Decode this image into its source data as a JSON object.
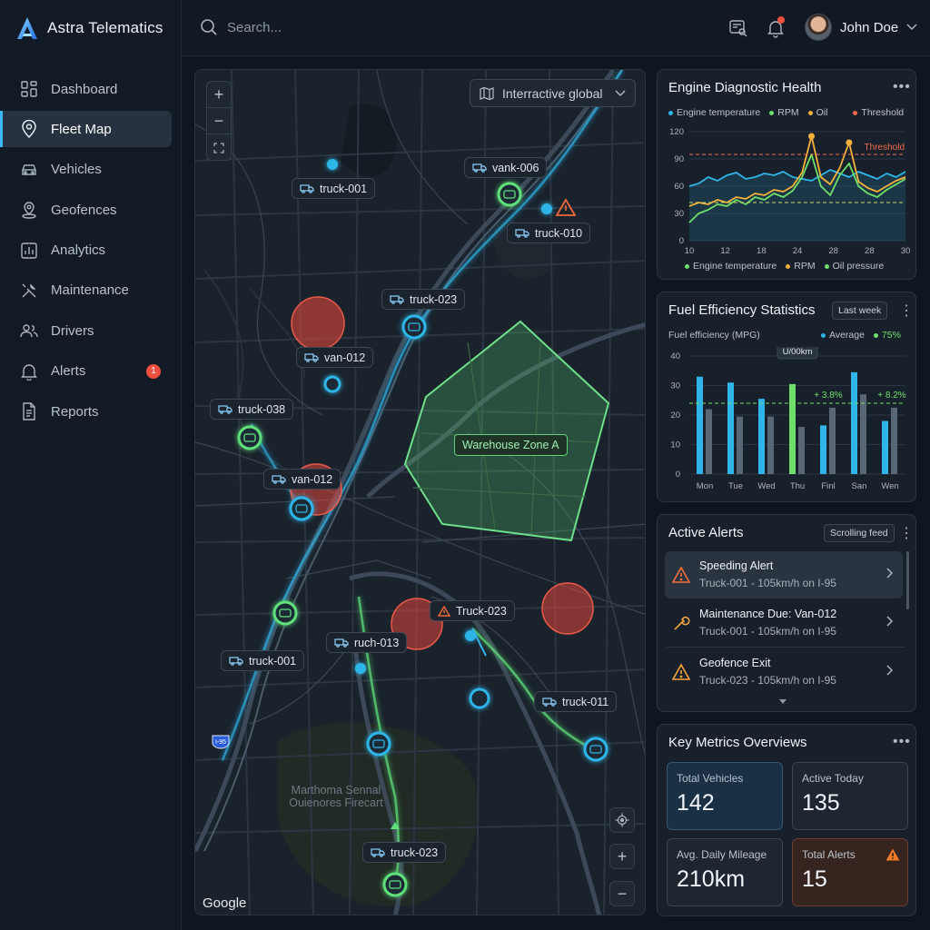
{
  "app": {
    "name": "Astra Telematics"
  },
  "search": {
    "placeholder": "Search..."
  },
  "user": {
    "name": "John Doe"
  },
  "sidebar": {
    "items": [
      {
        "label": "Dashboard",
        "icon": "grid-icon"
      },
      {
        "label": "Fleet Map",
        "icon": "map-pin-icon",
        "active": true
      },
      {
        "label": "Vehicles",
        "icon": "car-icon"
      },
      {
        "label": "Geofences",
        "icon": "geofence-pin-icon"
      },
      {
        "label": "Analytics",
        "icon": "bar-chart-icon"
      },
      {
        "label": "Maintenance",
        "icon": "wrench-icon"
      },
      {
        "label": "Drivers",
        "icon": "users-icon"
      },
      {
        "label": "Alerts",
        "icon": "bell-icon",
        "badge": "1"
      },
      {
        "label": "Reports",
        "icon": "document-icon"
      }
    ]
  },
  "map": {
    "layer_select": "Interractive global",
    "zone_label": "Warehouse Zone A",
    "place_label": "Marthoma Sennal Ouienores Firecart",
    "attribution": "Google",
    "shield": "I-95",
    "vehicles": [
      {
        "label": "truck-001"
      },
      {
        "label": "vank-006"
      },
      {
        "label": "truck-010"
      },
      {
        "label": "truck-023"
      },
      {
        "label": "van-012"
      },
      {
        "label": "truck-038"
      },
      {
        "label": "van-012"
      },
      {
        "label": "Truck-023"
      },
      {
        "label": "ruch-013"
      },
      {
        "label": "truck-001"
      },
      {
        "label": "truck-011"
      },
      {
        "label": "truck-023"
      }
    ]
  },
  "engine_card": {
    "title": "Engine Diagnostic Health",
    "legend_top": [
      "Engine temperature",
      "RPM",
      "Oil",
      "Threshold"
    ],
    "legend_bottom": [
      "Engine temperature",
      "RPM",
      "Oil pressure"
    ],
    "threshold_label": "Threshold",
    "colors": {
      "temp": "#2fb5e8",
      "rpm": "#6ee06a",
      "oil": "#f4b23c",
      "threshold": "#f06a4a"
    }
  },
  "fuel_card": {
    "title": "Fuel Efficiency Statistics",
    "range_button": "Last week",
    "ylabel": "Fuel efficiency (MPG)",
    "legend": [
      "Average",
      "75%"
    ],
    "tooltip": "U/00km",
    "annotations": [
      "+ 3.8%",
      "+ 8.2%"
    ]
  },
  "alerts_card": {
    "title": "Active Alerts",
    "feed_button": "Scrolling feed",
    "items": [
      {
        "title": "Speeding Alert",
        "sub": "Truck-001 - 105km/h on I-95",
        "icon": "warning-icon"
      },
      {
        "title": "Maintenance Due: Van-012",
        "sub": "Truck-001 - 105km/h on I-95",
        "icon": "wrench-icon"
      },
      {
        "title": "Geofence Exit",
        "sub": "Truck-023 - 105km/h on I-95",
        "icon": "warning-icon"
      }
    ]
  },
  "metrics_card": {
    "title": "Key Metrics Overviews",
    "items": [
      {
        "label": "Total Vehicles",
        "value": "142"
      },
      {
        "label": "Active Today",
        "value": "135"
      },
      {
        "label": "Avg. Daily Mileage",
        "value": "210km"
      },
      {
        "label": "Total Alerts",
        "value": "15"
      }
    ]
  },
  "chart_data": [
    {
      "type": "line",
      "title": "Engine Diagnostic Health",
      "x": [
        10,
        11,
        12,
        13,
        14,
        15,
        16,
        17,
        18,
        19,
        20,
        21,
        22,
        23,
        24,
        25,
        26,
        27,
        28,
        29,
        30,
        31,
        32,
        33
      ],
      "xticks": [
        "10",
        "12",
        "18",
        "24",
        "28",
        "28",
        "30"
      ],
      "yticks": [
        "0",
        "30",
        "60",
        "90",
        "120"
      ],
      "ylim": [
        0,
        120
      ],
      "series": [
        {
          "name": "Engine temperature",
          "values": [
            60,
            63,
            70,
            66,
            72,
            75,
            68,
            70,
            74,
            72,
            76,
            70,
            68,
            66,
            72,
            78,
            74,
            70,
            76,
            72,
            68,
            74,
            70,
            76
          ]
        },
        {
          "name": "RPM",
          "values": [
            20,
            30,
            34,
            40,
            38,
            45,
            40,
            48,
            45,
            52,
            48,
            55,
            70,
            95,
            60,
            50,
            72,
            85,
            60,
            52,
            48,
            56,
            62,
            68
          ]
        },
        {
          "name": "Oil pressure",
          "values": [
            38,
            42,
            40,
            45,
            42,
            48,
            46,
            52,
            50,
            56,
            54,
            60,
            75,
            115,
            70,
            62,
            80,
            108,
            65,
            58,
            54,
            60,
            66,
            70
          ]
        }
      ],
      "threshold": 95,
      "average": 42
    },
    {
      "type": "bar",
      "title": "Fuel Efficiency Statistics",
      "ylabel": "Fuel efficiency (MPG)",
      "categories": [
        "Mon",
        "Tue",
        "Wed",
        "Thu",
        "Finl",
        "San",
        "Wen"
      ],
      "yticks": [
        "0",
        "10",
        "20",
        "30",
        "40"
      ],
      "ylim": [
        0,
        40
      ],
      "series": [
        {
          "name": "",
          "values": [
            33,
            31,
            25.5,
            30.5,
            16.5,
            34.5,
            18
          ]
        },
        {
          "name": "",
          "values": [
            22,
            19.5,
            19.5,
            16,
            22.5,
            27,
            22.5
          ]
        }
      ],
      "average": 24
    }
  ]
}
